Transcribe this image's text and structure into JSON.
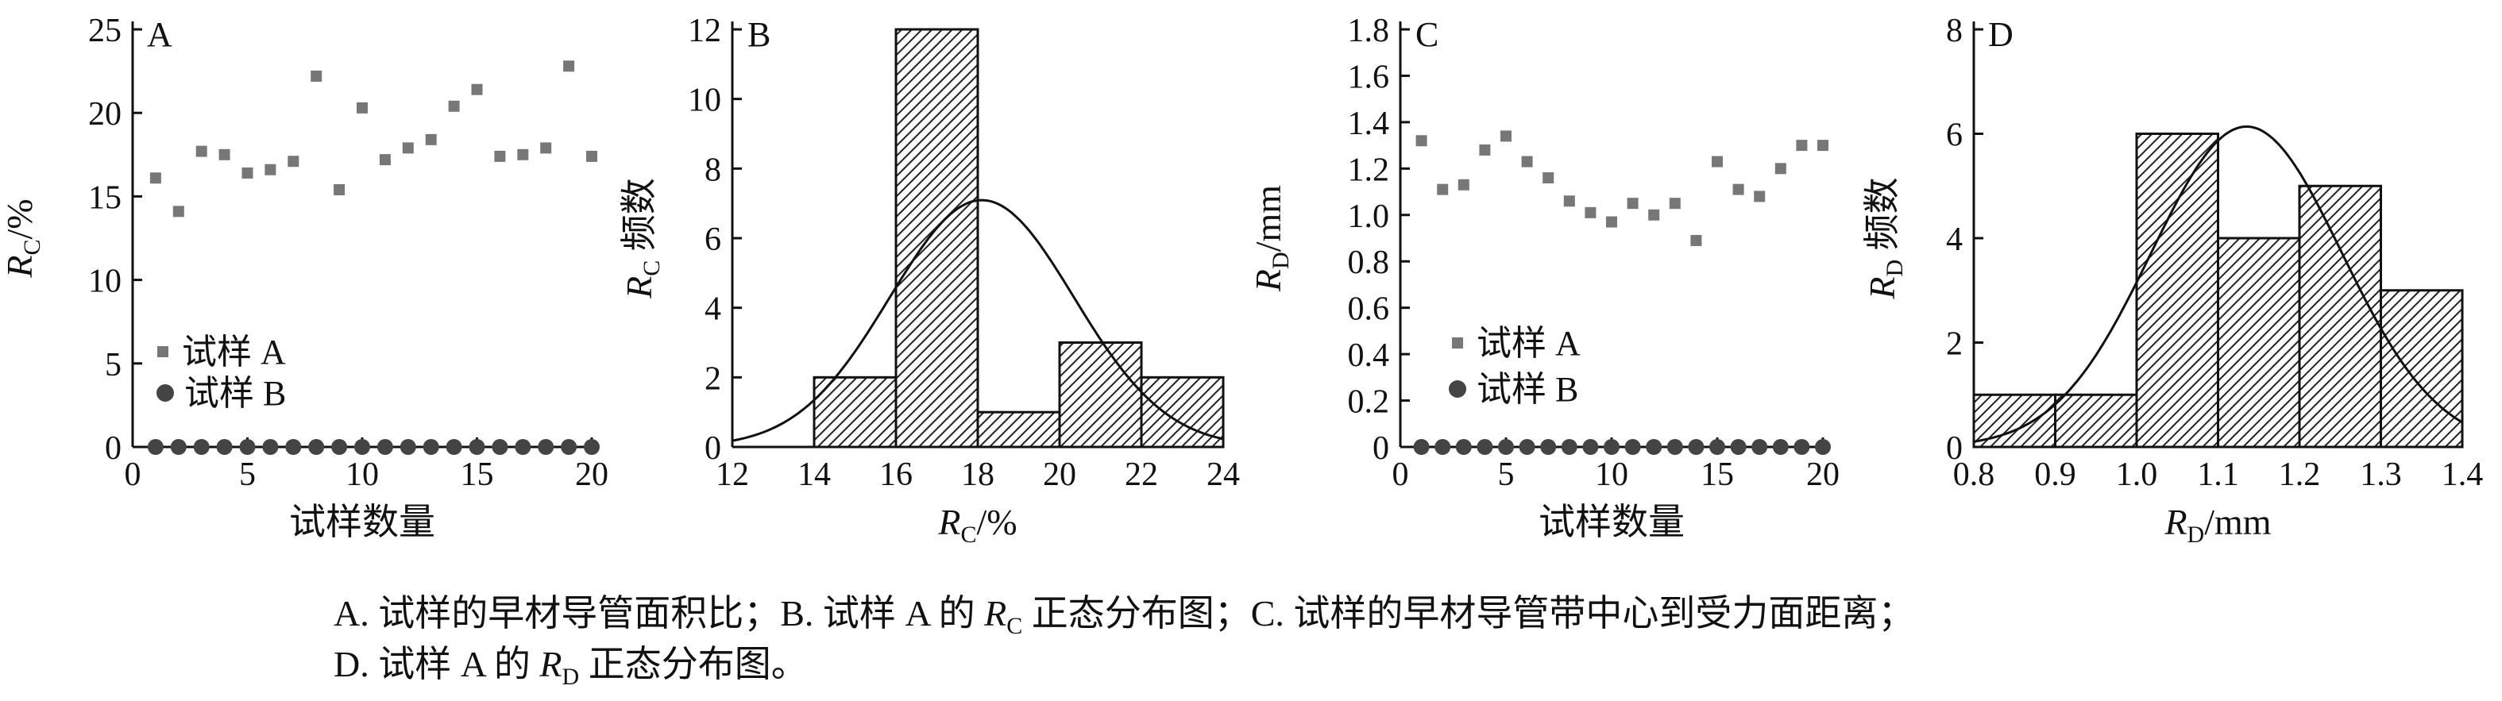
{
  "caption": {
    "line1_parts": [
      "A. 试样的早材导管面积比；B. 试样 A 的 ",
      "R",
      "C",
      " 正态分布图；C. 试样的早材导管带中心到受力面距离；"
    ],
    "line2_parts": [
      "D. 试样 A 的 ",
      "R",
      "D",
      " 正态分布图。"
    ]
  },
  "chart_data": [
    {
      "panel": "A",
      "type": "scatter",
      "ylabel_var": "R",
      "ylabel_sub": "C",
      "ylabel_unit": "/%",
      "xlabel": "试样数量",
      "xlim": [
        0,
        20
      ],
      "ylim": [
        0,
        25
      ],
      "xticks": [
        0,
        5,
        10,
        15,
        20
      ],
      "yticks": [
        0,
        5,
        10,
        15,
        20,
        25
      ],
      "series": [
        {
          "name": "试样 A",
          "marker": "square",
          "x": [
            1,
            2,
            3,
            4,
            5,
            6,
            7,
            8,
            9,
            10,
            11,
            12,
            13,
            14,
            15,
            16,
            17,
            18,
            19,
            20
          ],
          "y": [
            16.1,
            14.1,
            17.7,
            17.5,
            16.4,
            16.6,
            17.1,
            22.2,
            15.4,
            20.3,
            17.2,
            17.9,
            18.4,
            20.4,
            21.4,
            17.4,
            17.5,
            17.9,
            22.8,
            17.4
          ]
        },
        {
          "name": "试样 B",
          "marker": "circle",
          "x": [
            1,
            2,
            3,
            4,
            5,
            6,
            7,
            8,
            9,
            10,
            11,
            12,
            13,
            14,
            15,
            16,
            17,
            18,
            19,
            20
          ],
          "y": [
            0,
            0,
            0,
            0,
            0,
            0,
            0,
            0,
            0,
            0,
            0,
            0,
            0,
            0,
            0,
            0,
            0,
            0,
            0,
            0
          ]
        }
      ]
    },
    {
      "panel": "B",
      "type": "bar",
      "ylabel_var": "R",
      "ylabel_sub": "C",
      "ylabel_text": " 频数",
      "xlabel_var": "R",
      "xlabel_sub": "C",
      "xlabel_unit": "/%",
      "xlim": [
        12,
        24
      ],
      "ylim": [
        0,
        12
      ],
      "xticks": [
        12,
        14,
        16,
        18,
        20,
        22,
        24
      ],
      "yticks": [
        0,
        2,
        4,
        6,
        8,
        10,
        12
      ],
      "bins": [
        [
          14,
          16
        ],
        [
          16,
          18
        ],
        [
          18,
          20
        ],
        [
          20,
          22
        ],
        [
          22,
          24
        ]
      ],
      "values": [
        2,
        12,
        1,
        3,
        2
      ],
      "normal_curve": {
        "mean": 18.1,
        "sd": 2.25,
        "scale": 40
      }
    },
    {
      "panel": "C",
      "type": "scatter",
      "ylabel_var": "R",
      "ylabel_sub": "D",
      "ylabel_unit": "/mm",
      "xlabel": "试样数量",
      "xlim": [
        0,
        20
      ],
      "ylim": [
        0,
        1.8
      ],
      "xticks": [
        0,
        5,
        10,
        15,
        20
      ],
      "yticks": [
        0,
        0.2,
        0.4,
        0.6,
        0.8,
        1.0,
        1.2,
        1.4,
        1.6,
        1.8
      ],
      "ytick_labels": [
        "0",
        "0.2",
        "0.4",
        "0.6",
        "0.8",
        "1.0",
        "1.2",
        "1.4",
        "1.6",
        "1.8"
      ],
      "series": [
        {
          "name": "试样 A",
          "marker": "square",
          "x": [
            1,
            2,
            3,
            4,
            5,
            6,
            7,
            8,
            9,
            10,
            11,
            12,
            13,
            14,
            15,
            16,
            17,
            18,
            19,
            20
          ],
          "y": [
            1.32,
            1.11,
            1.13,
            1.28,
            1.34,
            1.23,
            1.16,
            1.06,
            1.01,
            0.97,
            1.05,
            1.0,
            1.05,
            0.89,
            1.23,
            1.11,
            1.08,
            1.2,
            1.3,
            1.3
          ]
        },
        {
          "name": "试样 B",
          "marker": "circle",
          "x": [
            1,
            2,
            3,
            4,
            5,
            6,
            7,
            8,
            9,
            10,
            11,
            12,
            13,
            14,
            15,
            16,
            17,
            18,
            19,
            20
          ],
          "y": [
            0,
            0,
            0,
            0,
            0,
            0,
            0,
            0,
            0,
            0,
            0,
            0,
            0,
            0,
            0,
            0,
            0,
            0,
            0,
            0
          ]
        }
      ]
    },
    {
      "panel": "D",
      "type": "bar",
      "ylabel_var": "R",
      "ylabel_sub": "D",
      "ylabel_text": " 频数",
      "xlabel_var": "R",
      "xlabel_sub": "D",
      "xlabel_unit": "/mm",
      "xlim": [
        0.8,
        1.4
      ],
      "ylim": [
        0,
        8
      ],
      "xticks": [
        0.8,
        0.9,
        1.0,
        1.1,
        1.2,
        1.3,
        1.4
      ],
      "xtick_labels": [
        "0.8",
        "0.9",
        "1.0",
        "1.1",
        "1.2",
        "1.3",
        "1.4"
      ],
      "yticks": [
        0,
        2,
        4,
        6,
        8
      ],
      "bins": [
        [
          0.8,
          0.9
        ],
        [
          0.9,
          1.0
        ],
        [
          1.0,
          1.1
        ],
        [
          1.1,
          1.2
        ],
        [
          1.2,
          1.3
        ],
        [
          1.3,
          1.4
        ]
      ],
      "values": [
        1,
        1,
        6,
        4,
        5,
        3
      ],
      "normal_curve": {
        "mean": 1.135,
        "sd": 0.117,
        "scale": 1.8
      }
    }
  ]
}
